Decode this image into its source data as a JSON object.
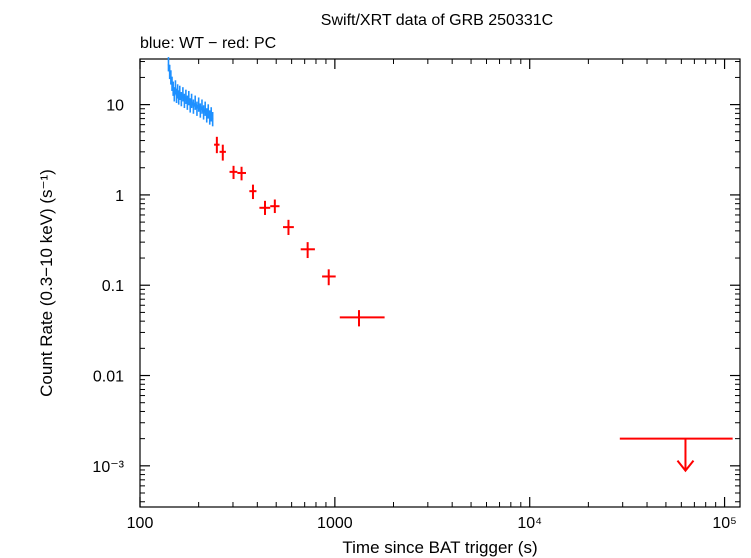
{
  "chart_data": {
    "type": "scatter",
    "title": "Swift/XRT data of GRB 250331C",
    "subtitle": "blue: WT − red: PC",
    "xlabel": "Time since BAT trigger (s)",
    "ylabel": "Count Rate (0.3−10 keV) (s⁻¹)",
    "x_scale": "log",
    "y_scale": "log",
    "xlim": [
      100,
      120000
    ],
    "ylim": [
      0.00035,
      32
    ],
    "x_ticks": [
      {
        "value": 100,
        "label": "100"
      },
      {
        "value": 1000,
        "label": "1000"
      },
      {
        "value": 10000,
        "label": "10⁴"
      },
      {
        "value": 100000,
        "label": "10⁵"
      }
    ],
    "y_ticks": [
      {
        "value": 10,
        "label": "10"
      },
      {
        "value": 1,
        "label": "1"
      },
      {
        "value": 0.1,
        "label": "0.1"
      },
      {
        "value": 0.01,
        "label": "0.01"
      },
      {
        "value": 0.001,
        "label": "10⁻³"
      }
    ],
    "series": [
      {
        "mode": "WT",
        "color": "#1e90ff",
        "points": [
          {
            "x": 140,
            "y": 28
          },
          {
            "x": 142,
            "y": 23
          },
          {
            "x": 144,
            "y": 20
          },
          {
            "x": 146,
            "y": 17
          },
          {
            "x": 148,
            "y": 15
          },
          {
            "x": 150,
            "y": 13
          },
          {
            "x": 152,
            "y": 15.5
          },
          {
            "x": 154,
            "y": 12.5
          },
          {
            "x": 156,
            "y": 14
          },
          {
            "x": 158,
            "y": 12
          },
          {
            "x": 160,
            "y": 13.5
          },
          {
            "x": 163,
            "y": 11.5
          },
          {
            "x": 166,
            "y": 13
          },
          {
            "x": 169,
            "y": 11
          },
          {
            "x": 172,
            "y": 12.2
          },
          {
            "x": 175,
            "y": 10.5
          },
          {
            "x": 178,
            "y": 11.8
          },
          {
            "x": 181,
            "y": 9.8
          },
          {
            "x": 184,
            "y": 11
          },
          {
            "x": 188,
            "y": 9.5
          },
          {
            "x": 192,
            "y": 10.5
          },
          {
            "x": 196,
            "y": 9
          },
          {
            "x": 200,
            "y": 10
          },
          {
            "x": 204,
            "y": 8.6
          },
          {
            "x": 208,
            "y": 9.5
          },
          {
            "x": 212,
            "y": 8.2
          },
          {
            "x": 216,
            "y": 9
          },
          {
            "x": 220,
            "y": 7.6
          },
          {
            "x": 224,
            "y": 8.4
          },
          {
            "x": 228,
            "y": 7.2
          },
          {
            "x": 232,
            "y": 7.8
          },
          {
            "x": 236,
            "y": 6.9
          }
        ]
      },
      {
        "mode": "PC",
        "color": "#ff0000",
        "points": [
          {
            "x": 248,
            "xerr": [
              240,
              256
            ],
            "y": 3.6,
            "yerr": [
              2.9,
              4.4
            ]
          },
          {
            "x": 266,
            "xerr": [
              256,
              276
            ],
            "y": 3.0,
            "yerr": [
              2.4,
              3.6
            ]
          },
          {
            "x": 302,
            "xerr": [
              288,
              316
            ],
            "y": 1.8,
            "yerr": [
              1.5,
              2.1
            ]
          },
          {
            "x": 332,
            "xerr": [
              316,
              350
            ],
            "y": 1.75,
            "yerr": [
              1.45,
              2.05
            ]
          },
          {
            "x": 380,
            "xerr": [
              364,
              396
            ],
            "y": 1.1,
            "yerr": [
              0.9,
              1.3
            ]
          },
          {
            "x": 438,
            "xerr": [
              410,
              466
            ],
            "y": 0.72,
            "yerr": [
              0.6,
              0.86
            ]
          },
          {
            "x": 492,
            "xerr": [
              466,
              520
            ],
            "y": 0.75,
            "yerr": [
              0.63,
              0.89
            ]
          },
          {
            "x": 578,
            "xerr": [
              542,
              616
            ],
            "y": 0.44,
            "yerr": [
              0.36,
              0.53
            ]
          },
          {
            "x": 725,
            "xerr": [
              668,
              790
            ],
            "y": 0.25,
            "yerr": [
              0.2,
              0.3
            ]
          },
          {
            "x": 930,
            "xerr": [
              860,
              1010
            ],
            "y": 0.125,
            "yerr": [
              0.1,
              0.15
            ]
          },
          {
            "x": 1330,
            "xerr": [
              1060,
              1800
            ],
            "y": 0.044,
            "yerr": [
              0.035,
              0.053
            ]
          }
        ],
        "upper_limits": [
          {
            "x": 63000,
            "xerr": [
              29000,
              110000
            ],
            "y": 0.002
          }
        ]
      }
    ]
  }
}
